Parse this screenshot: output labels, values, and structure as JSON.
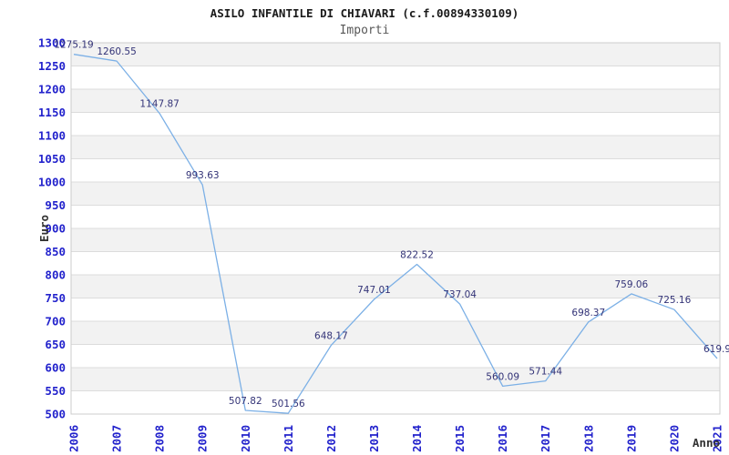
{
  "header": {
    "title": "ASILO INFANTILE DI CHIAVARI (c.f.00894330109)",
    "subtitle": "Importi"
  },
  "chart_data": {
    "type": "line",
    "title": "ASILO INFANTILE DI CHIAVARI (c.f.00894330109)",
    "subtitle": "Importi",
    "xlabel": "Anno",
    "ylabel": "Euro",
    "categories": [
      "2006",
      "2007",
      "2008",
      "2009",
      "2010",
      "2011",
      "2012",
      "2013",
      "2014",
      "2015",
      "2016",
      "2017",
      "2018",
      "2019",
      "2020",
      "2021"
    ],
    "values": [
      1275.19,
      1260.55,
      1147.87,
      993.63,
      507.82,
      501.56,
      648.17,
      747.01,
      822.52,
      737.04,
      560.09,
      571.44,
      698.37,
      759.06,
      725.16,
      619.9
    ],
    "ylim": [
      500,
      1300
    ],
    "ytick_step": 50,
    "yticks": [
      500,
      550,
      600,
      650,
      700,
      750,
      800,
      850,
      900,
      950,
      1000,
      1050,
      1100,
      1150,
      1200,
      1250,
      1300
    ],
    "grid": "horizontal",
    "legend": "none",
    "colors": {
      "line": "#7cb0e6",
      "tick_label": "#2222cc",
      "value_label": "#333377",
      "band": "#f2f2f2",
      "band_alt": "#ffffff",
      "grid": "#dcdcdc",
      "border": "#cccccc",
      "title": "#1a1a1a",
      "subtitle": "#585858",
      "axis_title": "#333333"
    }
  }
}
